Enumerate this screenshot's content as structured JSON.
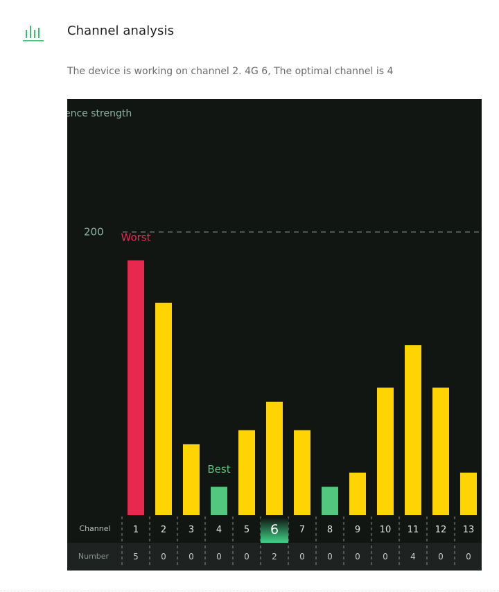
{
  "header": {
    "title": "Channel analysis",
    "subtitle": "The device is working on channel 2. 4G 6,  The optimal channel is 4"
  },
  "colors": {
    "accent": "#3dbf6e",
    "worst": "#e8294f",
    "best": "#52c77f",
    "normal": "#ffd400",
    "panel_bg": "#121613",
    "text_muted": "#8fb1a5"
  },
  "chart_data": {
    "type": "bar",
    "ylabel": "ence strength",
    "reference_line": {
      "value": 200,
      "label": "200",
      "style": "dashed"
    },
    "ylim": [
      0,
      289
    ],
    "categories": [
      "1",
      "2",
      "3",
      "4",
      "5",
      "6",
      "7",
      "8",
      "9",
      "10",
      "11",
      "12",
      "13"
    ],
    "values": [
      180,
      150,
      50,
      20,
      60,
      80,
      60,
      20,
      30,
      90,
      120,
      90,
      30
    ],
    "bar_status": [
      "worst",
      "normal",
      "normal",
      "best",
      "normal",
      "normal",
      "normal",
      "best",
      "normal",
      "normal",
      "normal",
      "normal",
      "normal"
    ],
    "annotations": [
      {
        "category": "1",
        "label": "Worst"
      },
      {
        "category": "4",
        "label": "Best"
      }
    ],
    "row_labels": {
      "channel": "Channel",
      "number": "Number"
    },
    "counts": [
      "5",
      "0",
      "0",
      "0",
      "0",
      "2",
      "0",
      "0",
      "0",
      "0",
      "4",
      "0",
      "0"
    ],
    "current_channel": "6",
    "grid": false
  }
}
